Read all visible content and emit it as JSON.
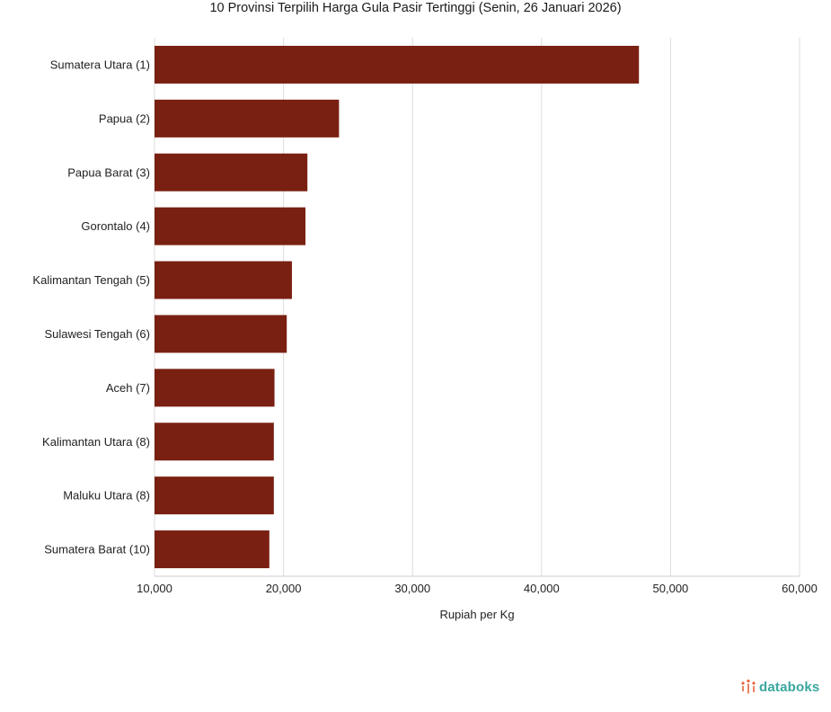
{
  "chart_data": {
    "type": "bar",
    "orientation": "horizontal",
    "title": "10 Provinsi Terpilih Harga Gula Pasir Tertinggi (Senin, 26 Januari 2026)",
    "xlabel": "Rupiah per Kg",
    "ylabel": "",
    "categories": [
      "Sumatera Utara (1)",
      "Papua (2)",
      "Papua Barat (3)",
      "Gorontalo (4)",
      "Kalimantan Tengah (5)",
      "Sulawesi Tengah (6)",
      "Aceh (7)",
      "Kalimantan Utara (8)",
      "Maluku Utara (8)",
      "Sumatera Barat (10)"
    ],
    "values": [
      47550,
      24300,
      21850,
      21700,
      20650,
      20250,
      19300,
      19250,
      19250,
      18900
    ],
    "xlim": [
      10000,
      60000
    ],
    "xticks": [
      "10,000",
      "20,000",
      "30,000",
      "40,000",
      "50,000",
      "60,000"
    ],
    "grid": true,
    "colors": {
      "bar": "#7a2012",
      "grid": "#dddddd"
    }
  },
  "brand": {
    "name": "databoks",
    "icon": "databoks-logo-icon",
    "color": "#3aa6a0",
    "accent": "#e8643a"
  }
}
